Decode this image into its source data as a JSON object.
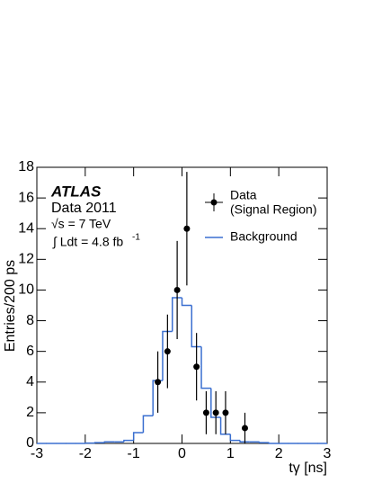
{
  "chart_data": {
    "type": "histogram",
    "y_label": "Entries/200 ps",
    "x_label": "tγ [ns]",
    "annotations": {
      "experiment": "ATLAS",
      "dataset": "Data 2011",
      "energy": "√s = 7 TeV",
      "lumi": "∫ Ldt = 4.8 fb",
      "lumi_sup": "-1"
    },
    "xlim": [
      -3,
      3
    ],
    "xticks": [
      -3,
      -2,
      -1,
      0,
      1,
      2,
      3
    ],
    "ylim": [
      0,
      18
    ],
    "yticks": [
      0,
      2,
      4,
      6,
      8,
      10,
      12,
      14,
      16,
      18
    ],
    "background": {
      "name": "Background",
      "color": "#3a6fd0",
      "bins": [
        -3.0,
        -2.8,
        -2.6,
        -2.4,
        -2.2,
        -2.0,
        -1.8,
        -1.6,
        -1.4,
        -1.2,
        -1.0,
        -0.8,
        -0.6,
        -0.4,
        -0.2,
        0.0,
        0.2,
        0.4,
        0.6,
        0.8,
        1.0,
        1.2,
        1.4,
        1.6,
        1.8,
        2.0,
        2.2,
        2.4,
        2.6,
        2.8,
        3.0
      ],
      "values": [
        0,
        0,
        0,
        0,
        0,
        0.02,
        0.05,
        0.1,
        0.1,
        0.2,
        0.7,
        1.8,
        4.1,
        7.3,
        9.5,
        9.0,
        6.3,
        3.6,
        1.7,
        0.6,
        0.2,
        0.1,
        0.1,
        0.05,
        0,
        0,
        0,
        0,
        0,
        0
      ]
    },
    "data": {
      "name": "Data",
      "name2": "(Signal Region)",
      "color": "#000000",
      "x": [
        -0.5,
        -0.3,
        -0.1,
        0.1,
        0.3,
        0.5,
        0.7,
        0.9,
        1.3
      ],
      "values": [
        4,
        6,
        10,
        14,
        5,
        2,
        2,
        2,
        1
      ],
      "errors": [
        2,
        2.4,
        3.2,
        3.7,
        2.2,
        1.4,
        1.4,
        1.4,
        1
      ]
    }
  }
}
